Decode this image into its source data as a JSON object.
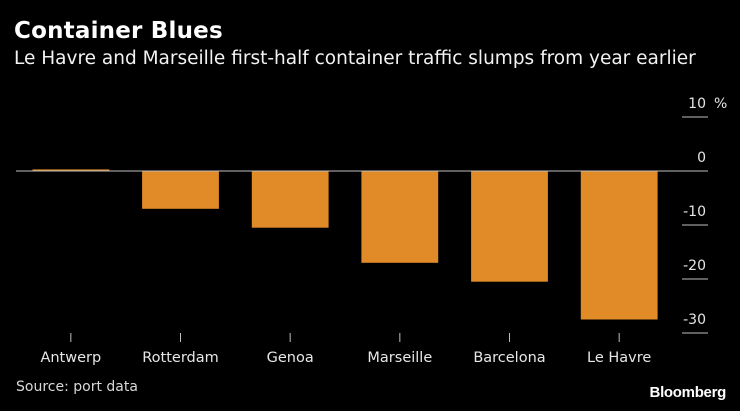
{
  "chart_data": {
    "type": "bar",
    "title": "Container Blues",
    "subtitle": "Le Havre and Marseille first-half container traffic slumps from year earlier",
    "xlabel": "",
    "ylabel": "",
    "y_unit": "%",
    "categories": [
      "Antwerp",
      "Rotterdam",
      "Genoa",
      "Marseille",
      "Barcelona",
      "Le Havre"
    ],
    "values": [
      0.3,
      -7,
      -10.5,
      -17,
      -20.5,
      -27.5
    ],
    "ylim": [
      -30,
      10
    ],
    "yticks": [
      10,
      0,
      -10,
      -20,
      -30
    ],
    "grid": false,
    "legend": "none",
    "axis_side": "right",
    "source": "Source: port data",
    "colors": {
      "bar": "#e08b27",
      "background": "#000000",
      "text": "#ffffff",
      "axis": "#bfbfbf"
    }
  },
  "brand": "Bloomberg"
}
